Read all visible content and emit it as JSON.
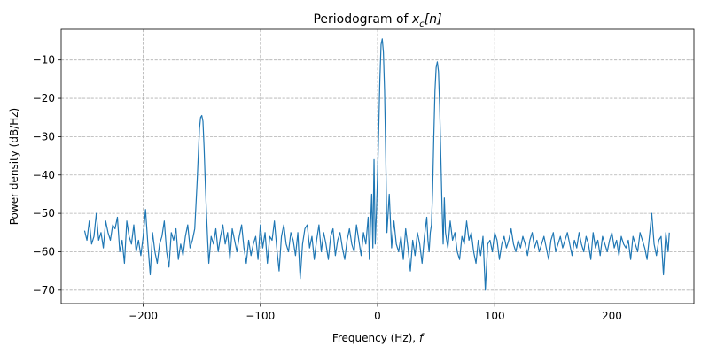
{
  "chart_data": {
    "type": "line",
    "title_prefix": "Periodogram of ",
    "title_var": "x",
    "title_sub": "c",
    "title_suffix": "[n]",
    "xlabel_prefix": "Frequency (Hz), ",
    "xlabel_var": "f",
    "ylabel": "Power density (dB/Hz)",
    "xlim": [
      -270,
      270
    ],
    "ylim": [
      -73.5,
      -2
    ],
    "xticks": [
      -200,
      -100,
      0,
      100,
      200
    ],
    "xtick_labels": [
      "−200",
      "−100",
      "0",
      "100",
      "200"
    ],
    "yticks": [
      -70,
      -60,
      -50,
      -40,
      -30,
      -20,
      -10
    ],
    "ytick_labels": [
      "−70",
      "−60",
      "−50",
      "−40",
      "−30",
      "−20",
      "−10"
    ],
    "grid": true,
    "line_color": "#1f77b4",
    "series": [
      {
        "x": [
          -250,
          -248,
          -246,
          -245,
          -244,
          -242,
          -240,
          -238,
          -236,
          -234,
          -232,
          -230,
          -228,
          -226,
          -224,
          -222,
          -220,
          -218,
          -216,
          -214,
          -212,
          -210,
          -208,
          -206,
          -204,
          -202,
          -200,
          -198,
          -196,
          -194,
          -192,
          -190,
          -188,
          -186,
          -184,
          -182,
          -180,
          -178,
          -176,
          -174,
          -172,
          -170,
          -168,
          -166,
          -164,
          -162,
          -160,
          -158,
          -156,
          -155,
          -154,
          -153,
          -152,
          -151,
          -150,
          -149,
          -148,
          -147,
          -146,
          -145,
          -144,
          -142,
          -140,
          -138,
          -136,
          -134,
          -132,
          -130,
          -128,
          -126,
          -124,
          -122,
          -120,
          -118,
          -116,
          -114,
          -112,
          -110,
          -108,
          -106,
          -104,
          -102,
          -100,
          -98,
          -96,
          -94,
          -92,
          -90,
          -88,
          -86,
          -84,
          -82,
          -80,
          -78,
          -76,
          -74,
          -72,
          -70,
          -68,
          -66,
          -64,
          -62,
          -60,
          -58,
          -56,
          -54,
          -52,
          -50,
          -48,
          -46,
          -44,
          -42,
          -40,
          -38,
          -36,
          -34,
          -32,
          -30,
          -28,
          -26,
          -24,
          -22,
          -20,
          -18,
          -16,
          -14,
          -12,
          -10,
          -8,
          -7,
          -6,
          -5,
          -4,
          -3,
          -2,
          -1,
          0,
          1,
          2,
          3,
          4,
          5,
          6,
          7,
          8,
          10,
          12,
          14,
          16,
          18,
          20,
          22,
          24,
          26,
          28,
          30,
          32,
          34,
          36,
          38,
          40,
          42,
          43,
          44,
          45,
          46,
          47,
          48,
          49,
          50,
          51,
          52,
          53,
          54,
          55,
          56,
          57,
          58,
          60,
          62,
          64,
          66,
          68,
          70,
          72,
          74,
          76,
          78,
          80,
          82,
          84,
          86,
          88,
          90,
          92,
          94,
          96,
          98,
          100,
          102,
          104,
          106,
          108,
          110,
          112,
          114,
          116,
          118,
          120,
          122,
          124,
          126,
          128,
          130,
          132,
          134,
          136,
          138,
          140,
          142,
          144,
          146,
          148,
          150,
          152,
          154,
          156,
          158,
          160,
          162,
          164,
          166,
          168,
          170,
          172,
          174,
          176,
          178,
          180,
          182,
          184,
          186,
          188,
          190,
          192,
          194,
          196,
          198,
          200,
          202,
          204,
          206,
          208,
          210,
          212,
          214,
          216,
          218,
          220,
          222,
          224,
          226,
          228,
          230,
          232,
          234,
          236,
          238,
          240,
          242,
          244,
          246,
          248,
          249
        ],
        "y": [
          -54.5,
          -57,
          -52,
          -55,
          -58,
          -56,
          -50,
          -57,
          -55,
          -59,
          -52,
          -55,
          -57,
          -53,
          -54,
          -51,
          -60,
          -57,
          -63,
          -52,
          -56,
          -58,
          -53,
          -60,
          -57,
          -61,
          -56,
          -49,
          -58,
          -66,
          -55,
          -60,
          -63,
          -58,
          -56,
          -52,
          -60,
          -64,
          -55,
          -57,
          -54,
          -62,
          -58,
          -61,
          -56,
          -53,
          -59,
          -57,
          -54,
          -48,
          -42,
          -35,
          -28,
          -25,
          -24.5,
          -26,
          -33,
          -42,
          -50,
          -57,
          -63,
          -56,
          -58,
          -54,
          -60,
          -56,
          -53,
          -58,
          -55,
          -62,
          -54,
          -57,
          -60,
          -56,
          -53,
          -59,
          -63,
          -57,
          -61,
          -58,
          -56,
          -62,
          -53,
          -59,
          -55,
          -63,
          -56,
          -57,
          -52,
          -59,
          -65,
          -56,
          -53,
          -58,
          -60,
          -55,
          -57,
          -61,
          -55,
          -67,
          -58,
          -54,
          -53,
          -59,
          -56,
          -62,
          -57,
          -53,
          -60,
          -55,
          -58,
          -62,
          -56,
          -54,
          -61,
          -57,
          -55,
          -59,
          -62,
          -57,
          -54,
          -58,
          -60,
          -53,
          -57,
          -61,
          -55,
          -58,
          -51,
          -62,
          -53,
          -45,
          -59,
          -36,
          -58,
          -50,
          -40,
          -28,
          -15,
          -6,
          -4.5,
          -8,
          -18,
          -35,
          -55,
          -45,
          -59,
          -52,
          -58,
          -60,
          -56,
          -62,
          -54,
          -59,
          -65,
          -57,
          -61,
          -55,
          -58,
          -63,
          -56,
          -51,
          -57,
          -60,
          -55,
          -53,
          -44,
          -30,
          -18,
          -12,
          -10.5,
          -13,
          -22,
          -35,
          -48,
          -58,
          -46,
          -55,
          -59,
          -52,
          -57,
          -55,
          -60,
          -62,
          -56,
          -58,
          -52,
          -57,
          -55,
          -60,
          -63,
          -57,
          -61,
          -56,
          -70,
          -58,
          -57,
          -60,
          -55,
          -57,
          -62,
          -58,
          -56,
          -59,
          -57,
          -54,
          -58,
          -60,
          -57,
          -59,
          -56,
          -58,
          -61,
          -57,
          -55,
          -59,
          -57,
          -60,
          -58,
          -56,
          -59,
          -62,
          -57,
          -55,
          -60,
          -58,
          -56,
          -59,
          -57,
          -55,
          -58,
          -61,
          -57,
          -59,
          -55,
          -58,
          -60,
          -56,
          -58,
          -62,
          -55,
          -59,
          -57,
          -61,
          -56,
          -58,
          -60,
          -57,
          -55,
          -59,
          -57,
          -61,
          -56,
          -58,
          -59,
          -57,
          -62,
          -56,
          -58,
          -60,
          -55,
          -57,
          -59,
          -62,
          -56,
          -50,
          -58,
          -61,
          -57,
          -56,
          -66,
          -55,
          -60,
          -55
        ],
        "name": ""
      }
    ]
  }
}
